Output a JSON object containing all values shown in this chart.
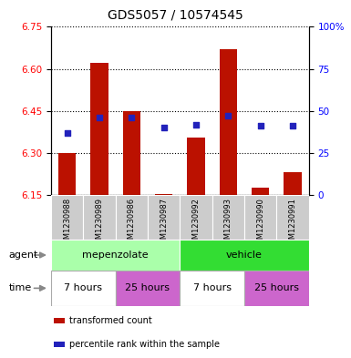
{
  "title": "GDS5057 / 10574545",
  "samples": [
    "GSM1230988",
    "GSM1230989",
    "GSM1230986",
    "GSM1230987",
    "GSM1230992",
    "GSM1230993",
    "GSM1230990",
    "GSM1230991"
  ],
  "bar_values": [
    6.3,
    6.62,
    6.45,
    6.153,
    6.355,
    6.67,
    6.175,
    6.232
  ],
  "bar_base": 6.15,
  "percentile_values": [
    37,
    46,
    46,
    40,
    42,
    47,
    41,
    41
  ],
  "ylim_left": [
    6.15,
    6.75
  ],
  "ylim_right": [
    0,
    100
  ],
  "yticks_left": [
    6.15,
    6.3,
    6.45,
    6.6,
    6.75
  ],
  "yticks_right": [
    0,
    25,
    50,
    75,
    100
  ],
  "ytick_labels_right": [
    "0",
    "25",
    "50",
    "75",
    "100%"
  ],
  "bar_color": "#bb1100",
  "dot_color": "#2222bb",
  "agent_row": [
    {
      "label": "mepenzolate",
      "span": [
        0,
        4
      ],
      "color": "#aaffaa"
    },
    {
      "label": "vehicle",
      "span": [
        4,
        8
      ],
      "color": "#33dd33"
    }
  ],
  "time_row": [
    {
      "label": "7 hours",
      "span": [
        0,
        2
      ],
      "color": "#ffffff"
    },
    {
      "label": "25 hours",
      "span": [
        2,
        4
      ],
      "color": "#cc66cc"
    },
    {
      "label": "7 hours",
      "span": [
        4,
        6
      ],
      "color": "#ffffff"
    },
    {
      "label": "25 hours",
      "span": [
        6,
        8
      ],
      "color": "#cc66cc"
    }
  ],
  "legend_items": [
    {
      "color": "#bb1100",
      "label": "transformed count"
    },
    {
      "color": "#2222bb",
      "label": "percentile rank within the sample"
    }
  ],
  "label_agent": "agent",
  "label_time": "time",
  "cell_bg": "#cccccc",
  "title_fontsize": 10,
  "tick_fontsize": 7.5,
  "label_fontsize": 8,
  "bar_width": 0.55
}
